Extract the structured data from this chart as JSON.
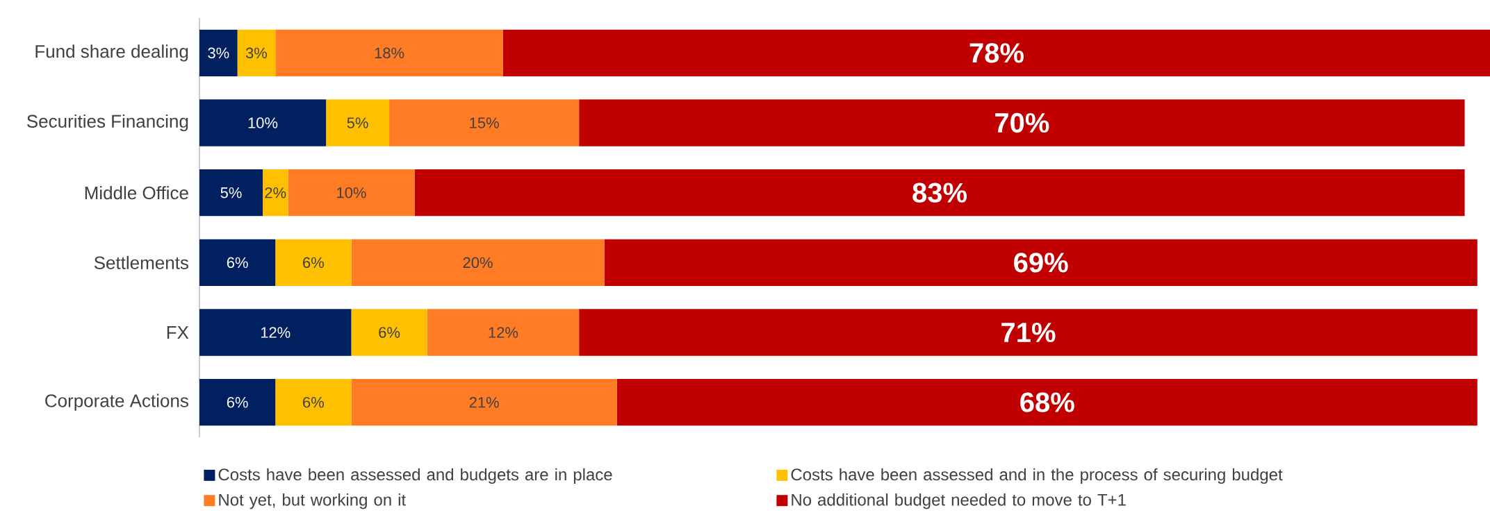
{
  "chart_data": {
    "type": "bar",
    "orientation": "horizontal",
    "stacked": true,
    "tick_labels": "y",
    "legend": "bottom",
    "categories": [
      "Fund share dealing",
      "Securities Financing",
      "Middle Office",
      "Settlements",
      "FX",
      "Corporate Actions"
    ],
    "series": [
      {
        "name": "Costs have been assessed and budgets are in place",
        "color": "#002060",
        "values": [
          3,
          10,
          5,
          6,
          12,
          6
        ],
        "value_labels": [
          "3%",
          "10%",
          "5%",
          "6%",
          "12%",
          "6%"
        ]
      },
      {
        "name": "Costs have been assessed and in the process of securing budget",
        "color": "#ffc000",
        "values": [
          3,
          5,
          2,
          6,
          6,
          6
        ],
        "value_labels": [
          "3%",
          "5%",
          "2%",
          "6%",
          "6%",
          "6%"
        ]
      },
      {
        "name": "Not yet, but working on it",
        "color": "#ff7c24",
        "values": [
          18,
          15,
          10,
          20,
          12,
          21
        ],
        "value_labels": [
          "18%",
          "15%",
          "10%",
          "20%",
          "12%",
          "21%"
        ]
      },
      {
        "name": "No additional budget needed to move to T+1",
        "color": "#c00000",
        "values": [
          78,
          70,
          83,
          69,
          71,
          68
        ],
        "value_labels": [
          "78%",
          "70%",
          "83%",
          "69%",
          "71%",
          "68%"
        ]
      }
    ]
  }
}
